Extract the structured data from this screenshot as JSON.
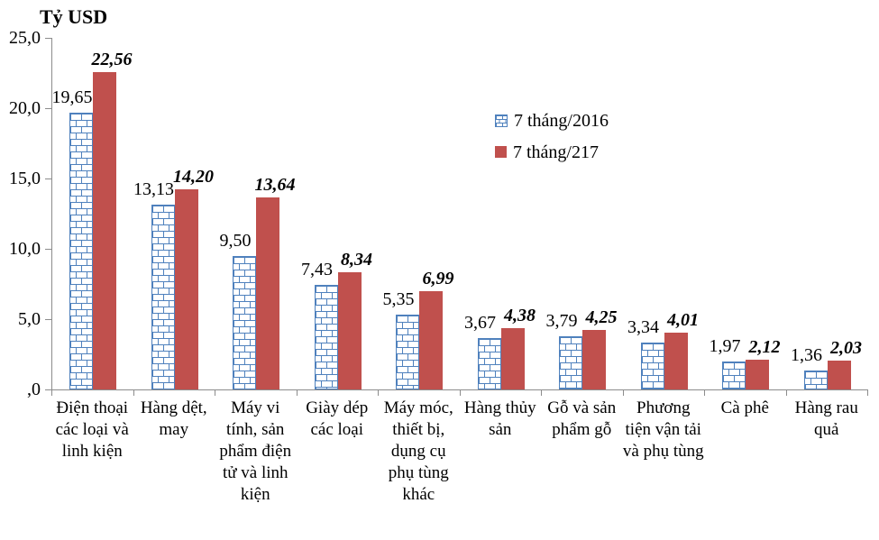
{
  "chart_data": {
    "type": "bar",
    "title": "Tỷ USD",
    "categories": [
      "Điện thoại các loại và linh kiện",
      "Hàng dệt, may",
      "Máy vi tính, sản phẩm điện tử và linh kiện",
      "Giày dép các loại",
      "Máy móc, thiết bị, dụng cụ phụ tùng khác",
      "Hàng thủy sản",
      "Gỗ và sản phẩm gỗ",
      "Phương tiện vận tải và phụ tùng",
      "Cà phê",
      "Hàng rau quả"
    ],
    "series": [
      {
        "name": "7 tháng/2016",
        "color": "#4F81BD",
        "pattern": "brick",
        "values": [
          19.65,
          13.13,
          9.5,
          7.43,
          5.35,
          3.67,
          3.79,
          3.34,
          1.97,
          1.36
        ],
        "labels": [
          "19,65",
          "13,13",
          "9,50",
          "7,43",
          "5,35",
          "3,67",
          "3,79",
          "3,34",
          "1,97",
          "1,36"
        ]
      },
      {
        "name": "7 tháng/217",
        "color": "#C0504D",
        "pattern": "solid",
        "values": [
          22.56,
          14.2,
          13.64,
          8.34,
          6.99,
          4.38,
          4.25,
          4.01,
          2.12,
          2.03
        ],
        "labels": [
          "22,56",
          "14,20",
          "13,64",
          "8,34",
          "6,99",
          "4,38",
          "4,25",
          "4,01",
          "2,12",
          "2,03"
        ]
      }
    ],
    "ylim": [
      0,
      25
    ],
    "ytick_values": [
      0,
      5,
      10,
      15,
      20,
      25
    ],
    "ytick_labels": [
      ",0",
      "5,0",
      "10,0",
      "15,0",
      "20,0",
      "25,0"
    ],
    "grid": false,
    "legend_position": "inside-upper-middle"
  }
}
